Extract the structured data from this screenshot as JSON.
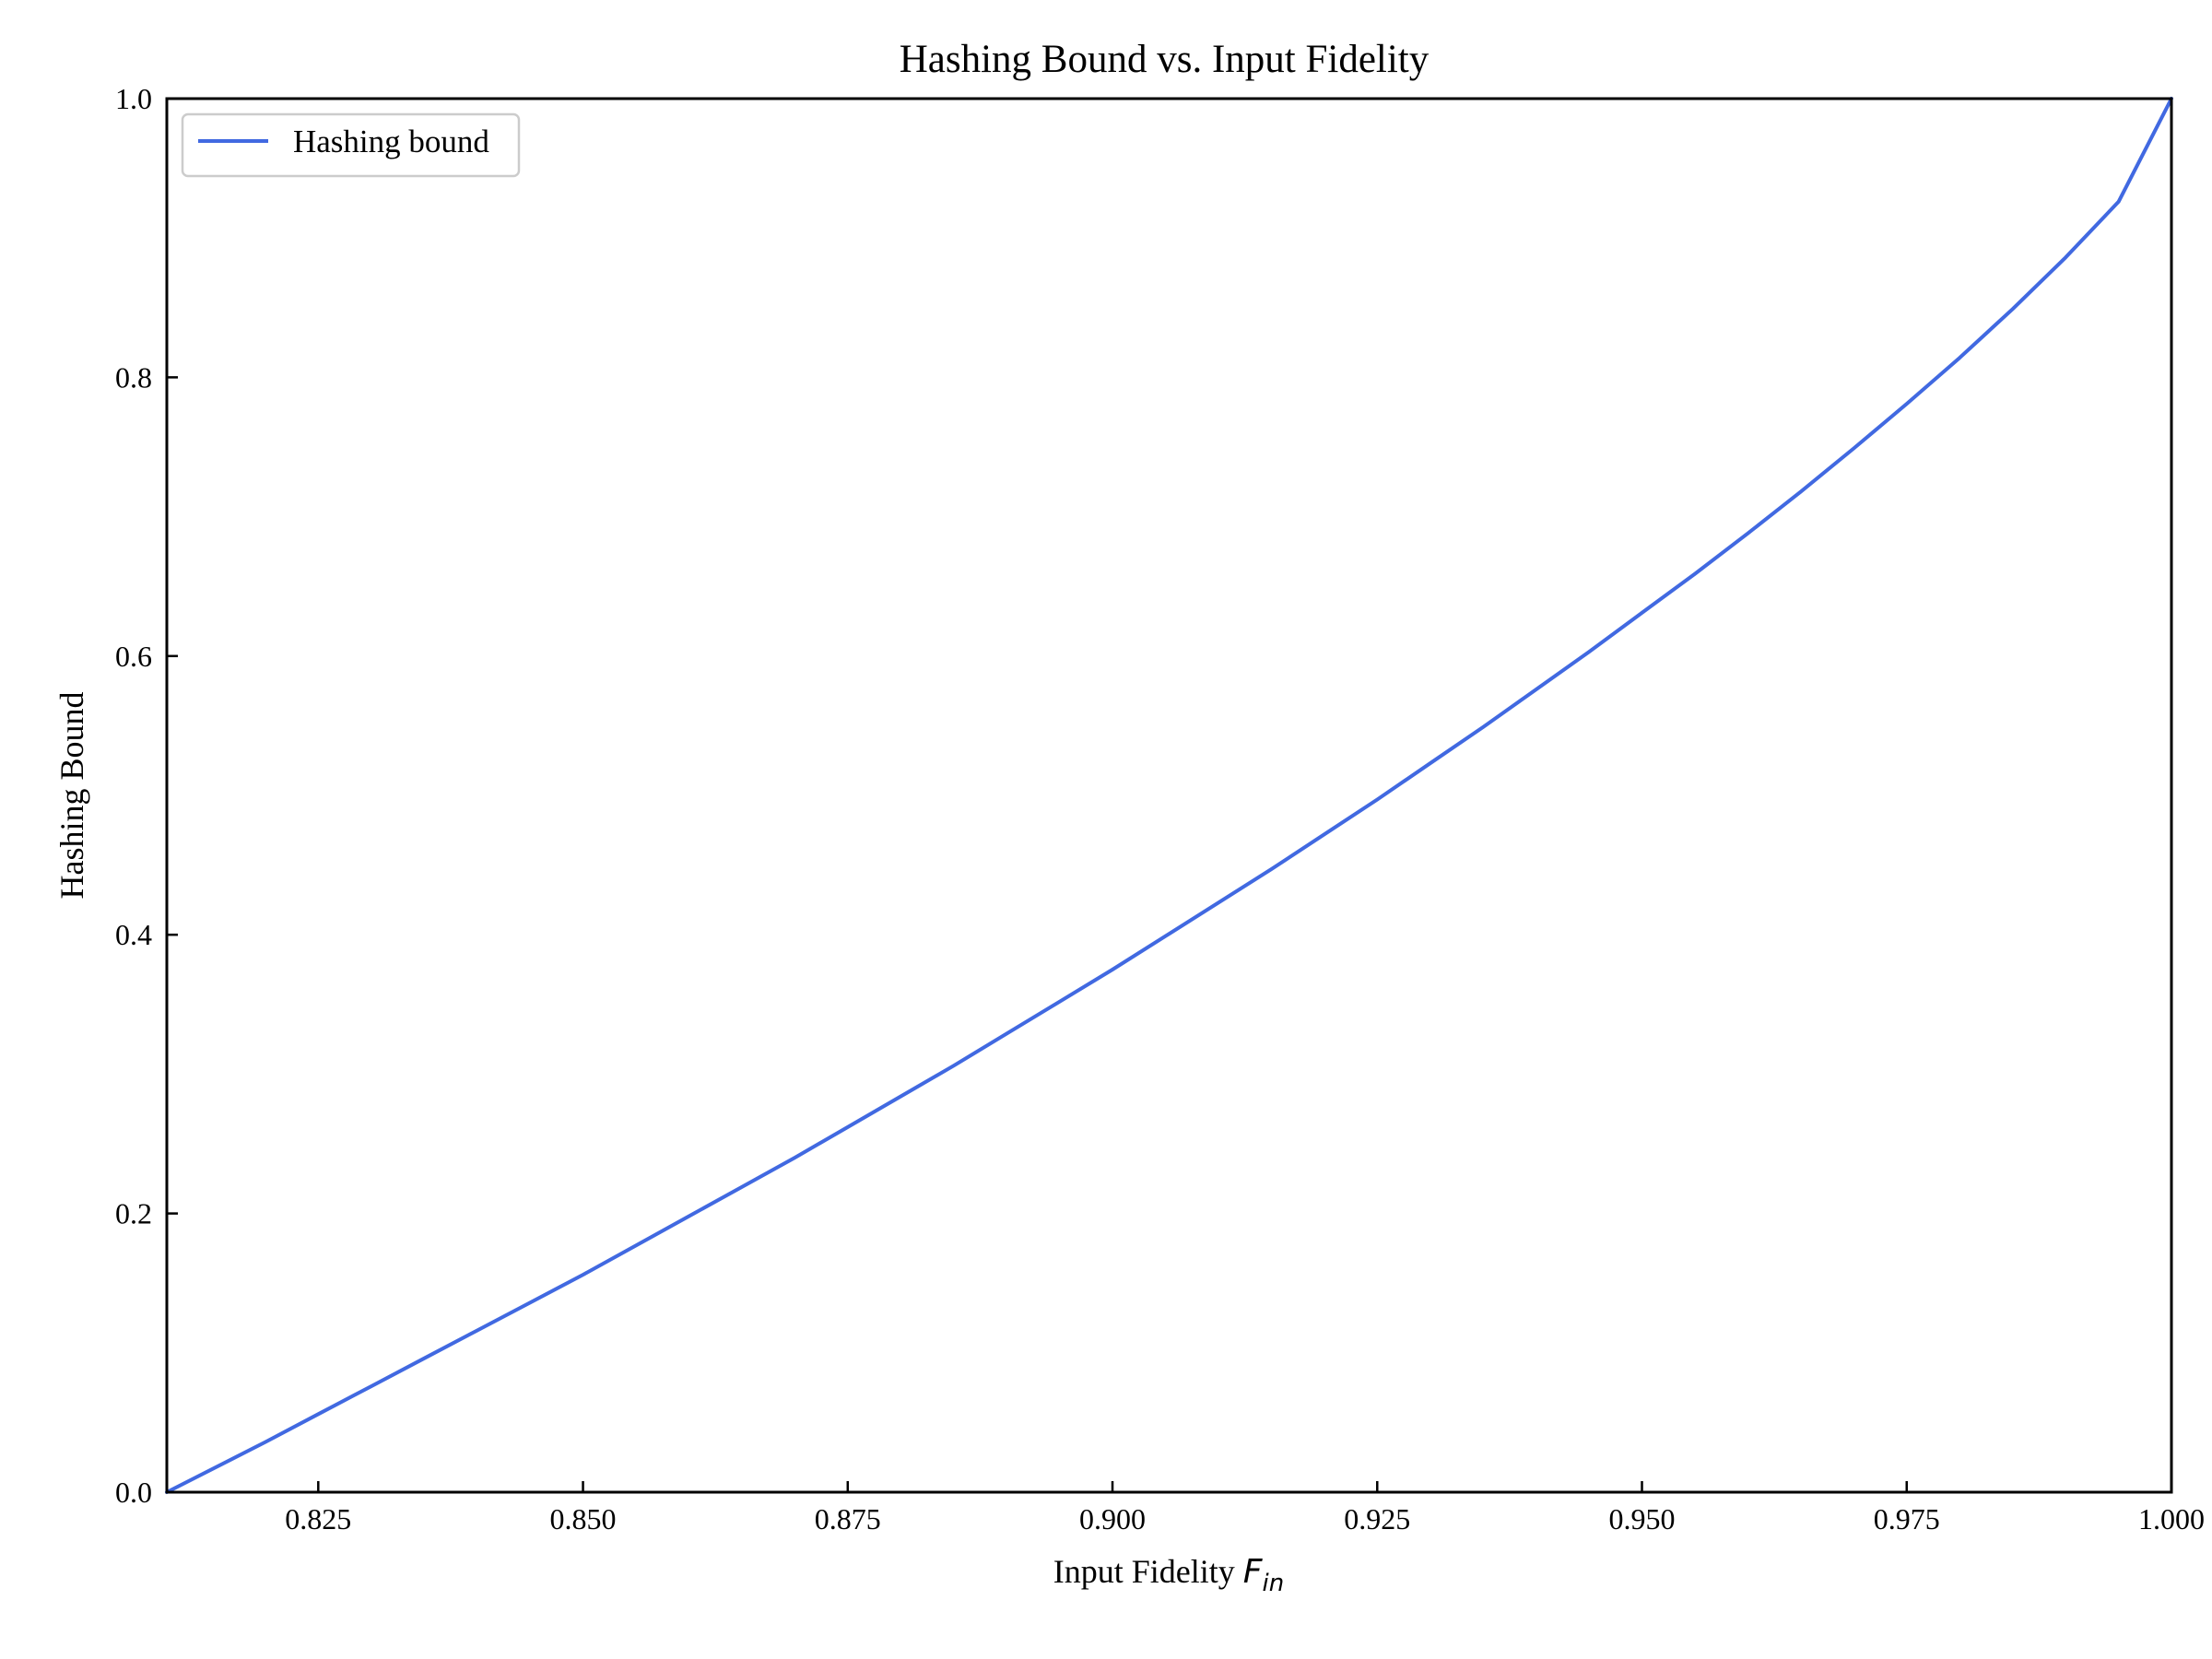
{
  "chart_data": {
    "type": "line",
    "title": "Hashing Bound vs. Input Fidelity",
    "xlabel": "Input Fidelity",
    "xlabel_symbol": "F",
    "xlabel_subscript": "in",
    "ylabel": "Hashing Bound",
    "xlim": [
      0.8107,
      1.0
    ],
    "ylim": [
      0.0,
      1.0
    ],
    "x_ticks": [
      0.825,
      0.85,
      0.875,
      0.9,
      0.925,
      0.95,
      0.975,
      1.0
    ],
    "x_tick_labels": [
      "0.825",
      "0.850",
      "0.875",
      "0.900",
      "0.925",
      "0.950",
      "0.975",
      "1.000"
    ],
    "y_ticks": [
      0.0,
      0.2,
      0.4,
      0.6,
      0.8,
      1.0
    ],
    "y_tick_labels": [
      "0.0",
      "0.2",
      "0.4",
      "0.6",
      "0.8",
      "1.0"
    ],
    "grid": false,
    "legend_position": "top-left",
    "series": [
      {
        "name": "Hashing bound",
        "color": "#4169e1",
        "x": [
          0.8107,
          0.82,
          0.825,
          0.83,
          0.835,
          0.84,
          0.845,
          0.85,
          0.855,
          0.86,
          0.865,
          0.87,
          0.875,
          0.88,
          0.885,
          0.89,
          0.895,
          0.9,
          0.905,
          0.91,
          0.915,
          0.92,
          0.925,
          0.93,
          0.935,
          0.94,
          0.945,
          0.95,
          0.955,
          0.96,
          0.965,
          0.97,
          0.975,
          0.98,
          0.985,
          0.99,
          0.995,
          1.0
        ],
        "y": [
          0.0,
          0.036,
          0.056,
          0.076,
          0.096,
          0.116,
          0.136,
          0.156,
          0.177,
          0.198,
          0.219,
          0.24,
          0.262,
          0.284,
          0.306,
          0.329,
          0.352,
          0.375,
          0.399,
          0.423,
          0.447,
          0.472,
          0.497,
          0.523,
          0.549,
          0.576,
          0.603,
          0.631,
          0.659,
          0.688,
          0.718,
          0.749,
          0.781,
          0.814,
          0.849,
          0.886,
          0.926,
          1.0
        ]
      }
    ]
  }
}
